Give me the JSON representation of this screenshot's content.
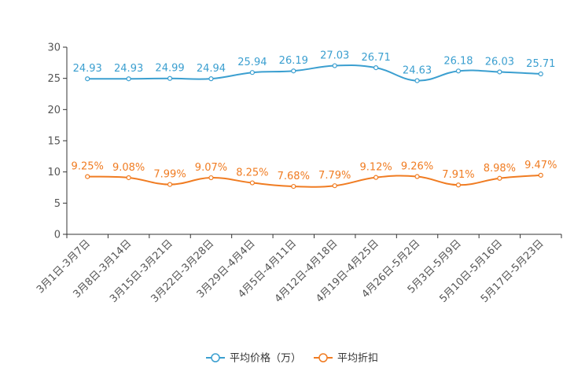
{
  "chart_data": {
    "type": "line",
    "title": "",
    "xlabel": "",
    "ylabel": "",
    "ylim": [
      0,
      30
    ],
    "yticks": [
      0,
      5,
      10,
      15,
      20,
      25,
      30
    ],
    "categories": [
      "3月1日-3月7日",
      "3月8日-3月14日",
      "3月15日-3月21日",
      "3月22日-3月28日",
      "3月29日-4月4日",
      "4月5日-4月11日",
      "4月12日-4月18日",
      "4月19日-4月25日",
      "4月26日-5月2日",
      "5月3日-5月9日",
      "5月10日-5月16日",
      "5月17日-5月23日"
    ],
    "series": [
      {
        "name": "平均价格（万）",
        "color": "#3b9fd0",
        "values": [
          24.93,
          24.93,
          24.99,
          24.94,
          25.94,
          26.19,
          27.03,
          26.71,
          24.63,
          26.18,
          26.03,
          25.71
        ],
        "labels": [
          "24.93",
          "24.93",
          "24.99",
          "24.94",
          "25.94",
          "26.19",
          "27.03",
          "26.71",
          "24.63",
          "26.18",
          "26.03",
          "25.71"
        ]
      },
      {
        "name": "平均折扣",
        "color": "#f07c22",
        "values": [
          9.25,
          9.08,
          7.99,
          9.07,
          8.25,
          7.68,
          7.79,
          9.12,
          9.26,
          7.91,
          8.98,
          9.47
        ],
        "labels": [
          "9.25%",
          "9.08%",
          "7.99%",
          "9.07%",
          "8.25%",
          "7.68%",
          "7.79%",
          "9.12%",
          "9.26%",
          "7.91%",
          "8.98%",
          "9.47%"
        ]
      }
    ],
    "legend_position": "bottom-center",
    "grid": false
  }
}
